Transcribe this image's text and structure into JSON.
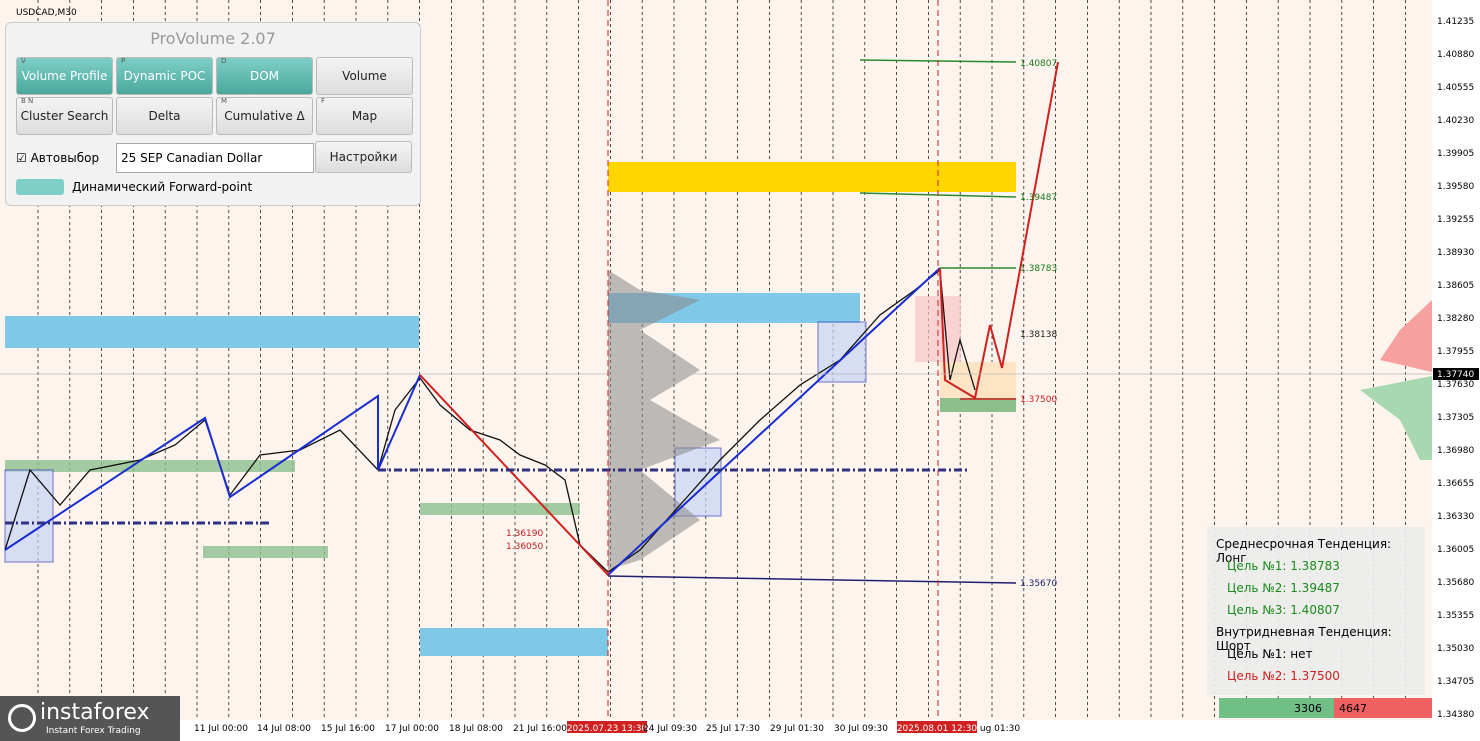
{
  "symbol": "USDCAD,M30",
  "panel": {
    "title": "ProVolume 2.07",
    "buttons": [
      {
        "key": "V",
        "label": "Volume Profile"
      },
      {
        "key": "P",
        "label": "Dynamic POC"
      },
      {
        "key": "D",
        "label": "DOM"
      },
      {
        "key": null,
        "label": "Volume"
      },
      {
        "key": "B N",
        "label": "Cluster Search"
      },
      {
        "key": null,
        "label": "Delta"
      },
      {
        "key": "M",
        "label": "Cumulative Δ"
      },
      {
        "key": "F",
        "label": "Map"
      }
    ],
    "autoselect": "Автовыбор",
    "instrument": "25 SEP Canadian Dollar",
    "settings": "Настройки",
    "forward": "Динамический Forward-point"
  },
  "price_axis": [
    "1.41235",
    "1.40880",
    "1.40555",
    "1.40230",
    "1.39905",
    "1.39580",
    "1.39255",
    "1.38930",
    "1.38605",
    "1.38280",
    "1.37955",
    "1.37630",
    "1.37305",
    "1.36980",
    "1.36655",
    "1.36330",
    "1.36005",
    "1.35680",
    "1.35355",
    "1.35030",
    "1.34705",
    "1.34380"
  ],
  "current_price": "1.37740",
  "time_axis": [
    "11 Jul 00:00",
    "14 Jul 08:00",
    "15 Jul 16:00",
    "17 Jul 00:00",
    "18 Jul 08:00",
    "21 Jul 16:00",
    "2025.07.23 13:30",
    "24 Jul 09:30",
    "25 Jul 17:30",
    "29 Jul 01:30",
    "30 Jul 09:30",
    "2025.08.01 12:30",
    "ug 01:30"
  ],
  "levels": [
    "1.40807",
    "1.39487",
    "1.38783",
    "1.38138",
    "1.37500",
    "1.35670",
    "1.36190",
    "1.36050"
  ],
  "info": {
    "medium": "Среднесрочная Тенденция: Лонг",
    "long_targets": [
      "Цель №1: 1.38783",
      "Цель №2: 1.39487",
      "Цель №3: 1.40807"
    ],
    "intraday": "Внутридневная Тенденция: Шорт",
    "short_targets": [
      "Цель №1: нет",
      "Цель №2: 1.37500"
    ]
  },
  "volume_bar": [
    "3306",
    "4647"
  ],
  "logo": {
    "name": "instaforex",
    "tagline": "Instant Forex Trading"
  }
}
